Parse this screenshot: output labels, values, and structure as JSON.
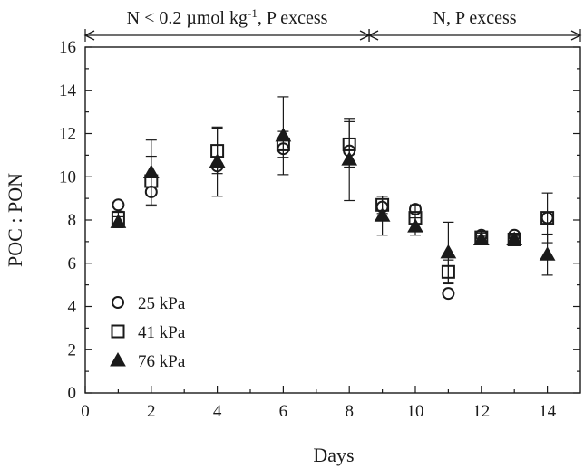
{
  "chart_data": {
    "type": "scatter",
    "xlabel": "Days",
    "ylabel": "POC : PON",
    "xlim": [
      0,
      15
    ],
    "ylim": [
      0,
      16
    ],
    "x_ticks": [
      0,
      2,
      4,
      6,
      8,
      10,
      12,
      14
    ],
    "y_ticks": [
      0,
      2,
      4,
      6,
      8,
      10,
      12,
      14,
      16
    ],
    "annotations": [
      {
        "text_main": "N < 0.2 µmol kg",
        "superscript": "-1",
        "text_tail": ", P excess",
        "from_day": 0,
        "to_day": 8.6
      },
      {
        "text_main": "N, P excess",
        "superscript": "",
        "text_tail": "",
        "from_day": 8.6,
        "to_day": 15
      }
    ],
    "legend_placement": "bottom-left",
    "series": [
      {
        "name": "25 kPa",
        "marker": "circle",
        "points": [
          {
            "x": 1,
            "y": 8.7
          },
          {
            "x": 2,
            "y": 9.3
          },
          {
            "x": 4,
            "y": 10.5
          },
          {
            "x": 6,
            "y": 11.3
          },
          {
            "x": 8,
            "y": 11.2
          },
          {
            "x": 9,
            "y": 8.6
          },
          {
            "x": 10,
            "y": 8.5
          },
          {
            "x": 11,
            "y": 4.6
          },
          {
            "x": 12,
            "y": 7.3
          },
          {
            "x": 13,
            "y": 7.3
          },
          {
            "x": 14,
            "y": 8.1
          }
        ]
      },
      {
        "name": "41 kPa",
        "marker": "square",
        "points": [
          {
            "x": 1,
            "y": 8.1,
            "err": 0.3
          },
          {
            "x": 2,
            "y": 9.8,
            "err": 1.15
          },
          {
            "x": 4,
            "y": 11.2,
            "err": 1.05
          },
          {
            "x": 6,
            "y": 11.5,
            "err": 0.6
          },
          {
            "x": 8,
            "y": 11.5,
            "err": 1.05
          },
          {
            "x": 9,
            "y": 8.7,
            "err": 0.4
          },
          {
            "x": 10,
            "y": 8.1,
            "err": 0.6
          },
          {
            "x": 11,
            "y": 5.6,
            "err": 0.55
          },
          {
            "x": 12,
            "y": 7.2,
            "err": 0.2
          },
          {
            "x": 13,
            "y": 7.1,
            "err": 0.2
          },
          {
            "x": 14,
            "y": 8.1,
            "err": 1.15
          }
        ]
      },
      {
        "name": "76 kPa",
        "marker": "triangle",
        "points": [
          {
            "x": 1,
            "y": 7.9,
            "err": 0.25
          },
          {
            "x": 2,
            "y": 10.2,
            "err": 1.5
          },
          {
            "x": 4,
            "y": 10.7,
            "err": 1.6
          },
          {
            "x": 6,
            "y": 11.9,
            "err": 1.8
          },
          {
            "x": 8,
            "y": 10.8,
            "err": 1.9
          },
          {
            "x": 9,
            "y": 8.2,
            "err": 0.9
          },
          {
            "x": 10,
            "y": 7.7,
            "err": 0.4
          },
          {
            "x": 11,
            "y": 6.5,
            "err": 1.4
          },
          {
            "x": 12,
            "y": 7.1,
            "err": 0.15
          },
          {
            "x": 13,
            "y": 7.1,
            "err": 0.15
          },
          {
            "x": 14,
            "y": 6.4,
            "err": 0.95
          }
        ]
      }
    ]
  }
}
